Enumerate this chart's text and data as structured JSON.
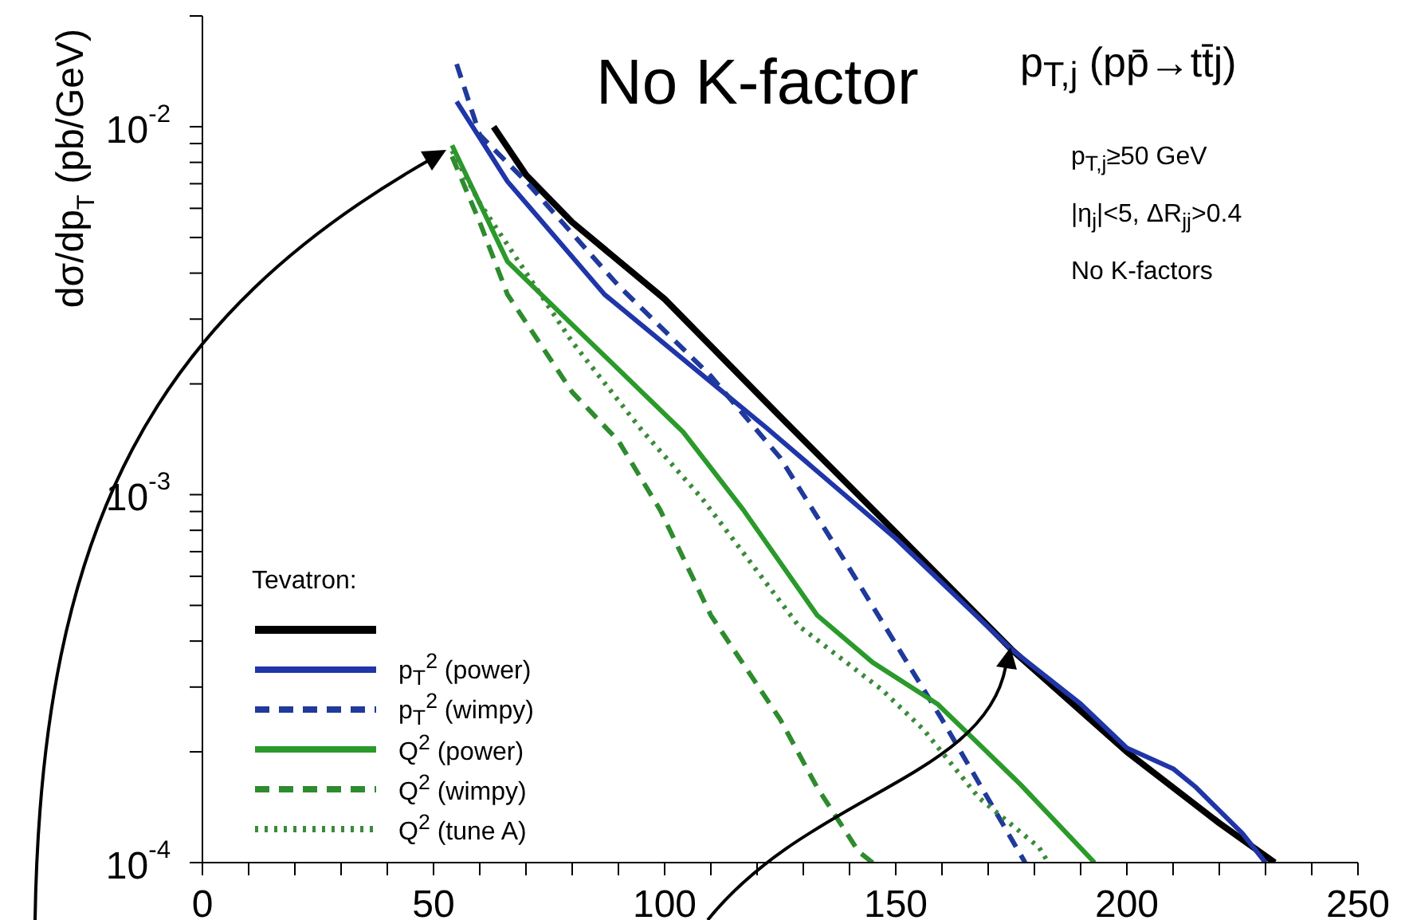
{
  "chart_data": {
    "type": "line",
    "title": "p$_{T,j}$ (pp̄→tt̄j)",
    "ylabel": "dσ/dp$_{T}$ (pb/GeV)",
    "legend_title": "Tevatron:",
    "legend": "bottom left",
    "log": "y",
    "marker": "none",
    "annotations": [
      "No K-factor",
      "p$_{T,j}$≥50 GeV",
      "|η$_{j}$|<5, ΔR$_{jj}$>0.4",
      "No K-factors"
    ],
    "xlim": [
      0,
      250
    ],
    "xticks": [
      0,
      {
        "value": 10,
        "label": null
      },
      {
        "value": 20,
        "label": null
      },
      {
        "value": 30,
        "label": null
      },
      {
        "value": 40,
        "label": null
      },
      50,
      {
        "value": 60,
        "label": null
      },
      {
        "value": 70,
        "label": null
      },
      {
        "value": 80,
        "label": null
      },
      {
        "value": 90,
        "label": null
      },
      100,
      {
        "value": 110,
        "label": null
      },
      {
        "value": 120,
        "label": null
      },
      {
        "value": 130,
        "label": null
      },
      {
        "value": 140,
        "label": null
      },
      150,
      {
        "value": 160,
        "label": null
      },
      {
        "value": 170,
        "label": null
      },
      {
        "value": 180,
        "label": null
      },
      {
        "value": 190,
        "label": null
      },
      200,
      {
        "value": 210,
        "label": null
      },
      {
        "value": 220,
        "label": null
      },
      {
        "value": 230,
        "label": null
      },
      {
        "value": 240,
        "label": null
      },
      250
    ],
    "ylim": [
      0.0001,
      0.02
    ],
    "yticks": [
      {
        "value": 0.0001,
        "label": "10$^{-4}$"
      },
      {
        "value": 0.0002,
        "label": null
      },
      {
        "value": 0.0003,
        "label": null
      },
      {
        "value": 0.0004,
        "label": null
      },
      {
        "value": 0.0005,
        "label": null
      },
      {
        "value": 0.0006,
        "label": null
      },
      {
        "value": 0.0007,
        "label": null
      },
      {
        "value": 0.0008,
        "label": null
      },
      {
        "value": 0.0009,
        "label": null
      },
      {
        "value": 0.001,
        "label": "10$^{-3}$"
      },
      {
        "value": 0.002,
        "label": null
      },
      {
        "value": 0.003,
        "label": null
      },
      {
        "value": 0.004,
        "label": null
      },
      {
        "value": 0.005,
        "label": null
      },
      {
        "value": 0.006,
        "label": null
      },
      {
        "value": 0.007,
        "label": null
      },
      {
        "value": 0.008,
        "label": null
      },
      {
        "value": 0.009,
        "label": null
      },
      {
        "value": 0.01,
        "label": "10$^{-2}$"
      },
      {
        "value": 0.02,
        "label": null
      }
    ],
    "series": [
      {
        "color": "#000000",
        "line_style": "solid",
        "x": [
          63,
          70,
          80,
          100,
          125,
          150,
          175,
          200,
          220,
          232
        ],
        "values": [
          0.01,
          0.0074,
          0.0055,
          0.0034,
          0.00163,
          0.00079,
          0.00038,
          0.0002,
          0.000128,
          0.0001
        ]
      },
      {
        "name": "p$_{T}$$^{2}$ (power)",
        "color": "#1f35a8",
        "line_style": "solid",
        "x": [
          55,
          66,
          87,
          122,
          150,
          175,
          190,
          200,
          210,
          215,
          225,
          230
        ],
        "values": [
          0.0117,
          0.0071,
          0.0035,
          0.00152,
          0.00076,
          0.00038,
          0.00027,
          0.000205,
          0.00018,
          0.00016,
          0.00012,
          0.0001
        ]
      },
      {
        "name": "p$_{T}$$^{2}$ (wimpy)",
        "color": "#1f3a9a",
        "line_style": "dashed",
        "x": [
          55,
          60,
          70,
          90,
          110,
          125,
          140,
          160,
          170,
          178
        ],
        "values": [
          0.0148,
          0.0095,
          0.0071,
          0.0037,
          0.0021,
          0.00126,
          0.00063,
          0.000245,
          0.000149,
          0.0001
        ]
      },
      {
        "name": "Q$^{2}$ (power)",
        "color": "#2a9a2a",
        "line_style": "solid",
        "x": [
          54,
          66,
          80,
          104,
          117,
          133,
          145,
          159,
          168,
          177,
          193
        ],
        "values": [
          0.0089,
          0.0043,
          0.0029,
          0.00148,
          0.00091,
          0.00047,
          0.00035,
          0.00027,
          0.00021,
          0.000163,
          0.0001
        ]
      },
      {
        "name": "Q$^{2}$ (wimpy)",
        "color": "#2e8b2e",
        "line_style": "dashed",
        "x": [
          54,
          60,
          66,
          80,
          90,
          99,
          110,
          125,
          133,
          142,
          145
        ],
        "values": [
          0.0083,
          0.0055,
          0.0035,
          0.0019,
          0.0014,
          0.00091,
          0.00047,
          0.000245,
          0.00016,
          0.000107,
          0.0001
        ]
      },
      {
        "name": "Q$^{2}$ (tune A)",
        "color": "#3a8a3a",
        "line_style": "dotted",
        "x": [
          54,
          60,
          80,
          95,
          108,
          129,
          147,
          156,
          168,
          181,
          183
        ],
        "values": [
          0.0086,
          0.0062,
          0.0026,
          0.0015,
          0.00098,
          0.00044,
          0.000295,
          0.00023,
          0.00015,
          0.00011,
          0.0001
        ]
      }
    ]
  }
}
